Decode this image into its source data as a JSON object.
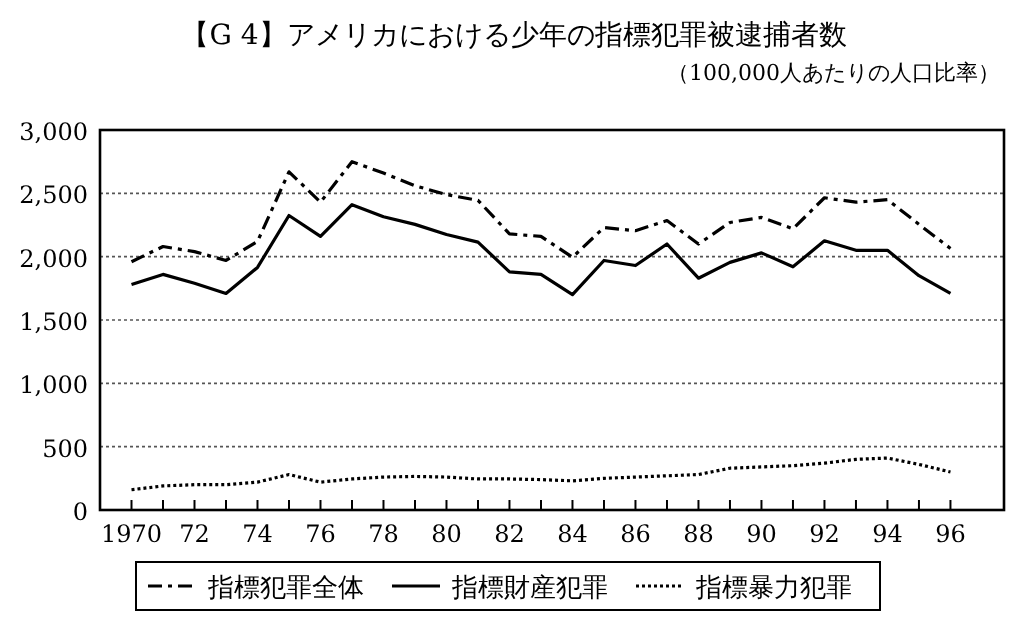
{
  "chart_data": {
    "type": "line",
    "title": "【G 4】アメリカにおける少年の指標犯罪被逮捕者数",
    "subtitle": "（100,000人あたりの人口比率）",
    "x": [
      1970,
      1971,
      1972,
      1973,
      1974,
      1975,
      1976,
      1977,
      1978,
      1979,
      1980,
      1981,
      1982,
      1983,
      1984,
      1985,
      1986,
      1987,
      1988,
      1989,
      1990,
      1991,
      1992,
      1993,
      1994,
      1995,
      1996
    ],
    "xlim": [
      1969,
      1997.7
    ],
    "xticks": [
      {
        "value": 1970,
        "label": "1970"
      },
      {
        "value": 1971,
        "label": null
      },
      {
        "value": 1972,
        "label": "72"
      },
      {
        "value": 1973,
        "label": null
      },
      {
        "value": 1974,
        "label": "74"
      },
      {
        "value": 1975,
        "label": null
      },
      {
        "value": 1976,
        "label": "76"
      },
      {
        "value": 1977,
        "label": null
      },
      {
        "value": 1978,
        "label": "78"
      },
      {
        "value": 1979,
        "label": null
      },
      {
        "value": 1980,
        "label": "80"
      },
      {
        "value": 1981,
        "label": null
      },
      {
        "value": 1982,
        "label": "82"
      },
      {
        "value": 1983,
        "label": null
      },
      {
        "value": 1984,
        "label": "84"
      },
      {
        "value": 1985,
        "label": null
      },
      {
        "value": 1986,
        "label": "86"
      },
      {
        "value": 1987,
        "label": null
      },
      {
        "value": 1988,
        "label": "88"
      },
      {
        "value": 1989,
        "label": null
      },
      {
        "value": 1990,
        "label": "90"
      },
      {
        "value": 1991,
        "label": null
      },
      {
        "value": 1992,
        "label": "92"
      },
      {
        "value": 1993,
        "label": null
      },
      {
        "value": 1994,
        "label": "94"
      },
      {
        "value": 1995,
        "label": null
      },
      {
        "value": 1996,
        "label": "96"
      }
    ],
    "ylim": [
      0,
      3000
    ],
    "yticks": [
      {
        "value": 0,
        "label": "0"
      },
      {
        "value": 500,
        "label": "500"
      },
      {
        "value": 1000,
        "label": "1,000"
      },
      {
        "value": 1500,
        "label": "1,500"
      },
      {
        "value": 2000,
        "label": "2,000"
      },
      {
        "value": 2500,
        "label": "2,500"
      },
      {
        "value": 3000,
        "label": "3,000"
      }
    ],
    "grid": "y",
    "legend": "bottom",
    "marker": "none",
    "series": [
      {
        "name": "指標犯罪全体",
        "color": "#000000",
        "line_style": "dashed",
        "values": [
          1960,
          2080,
          2040,
          1970,
          2120,
          2670,
          2430,
          2750,
          2660,
          2560,
          2490,
          2445,
          2180,
          2160,
          1995,
          2230,
          2205,
          2285,
          2100,
          2270,
          2310,
          2220,
          2465,
          2430,
          2450,
          2255,
          2065
        ]
      },
      {
        "name": "指標財産犯罪",
        "color": "#000000",
        "line_style": "solid",
        "values": [
          1780,
          1860,
          1790,
          1710,
          1915,
          2325,
          2160,
          2410,
          2315,
          2255,
          2175,
          2115,
          1880,
          1860,
          1700,
          1970,
          1930,
          2100,
          1830,
          1955,
          2030,
          1920,
          2125,
          2050,
          2050,
          1850,
          1710
        ]
      },
      {
        "name": "指標暴力犯罪",
        "color": "#000000",
        "line_style": "dotted",
        "values": [
          160,
          190,
          200,
          200,
          220,
          280,
          220,
          245,
          260,
          265,
          260,
          245,
          245,
          240,
          230,
          250,
          260,
          270,
          280,
          330,
          340,
          350,
          370,
          400,
          410,
          360,
          300
        ]
      }
    ]
  }
}
